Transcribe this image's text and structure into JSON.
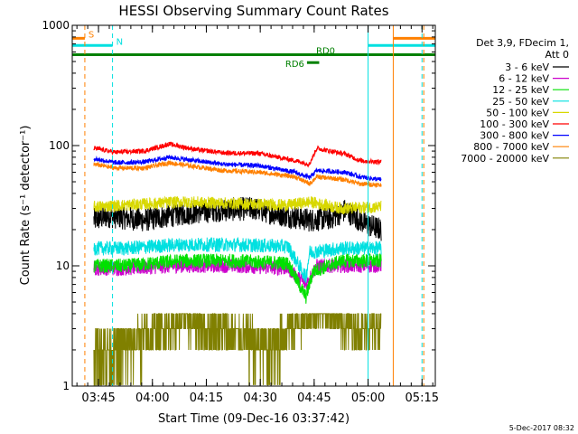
{
  "chart_data": {
    "type": "line",
    "title": "HESSI Observing Summary Count Rates",
    "xlabel": "Start Time (09-Dec-16 03:37:42)",
    "ylabel": "Count Rate (s⁻¹ detector⁻¹)",
    "yscale": "log",
    "ylim": [
      1,
      1000
    ],
    "xlim_minutes": [
      0,
      101
    ],
    "grid": false,
    "legend_position": "right",
    "x_ticks": [
      {
        "minute": 7.3,
        "label": "03:45"
      },
      {
        "minute": 22.3,
        "label": "04:00"
      },
      {
        "minute": 37.3,
        "label": "04:15"
      },
      {
        "minute": 52.3,
        "label": "04:30"
      },
      {
        "minute": 67.3,
        "label": "04:45"
      },
      {
        "minute": 82.3,
        "label": "05:00"
      },
      {
        "minute": 97.3,
        "label": "05:15"
      }
    ],
    "y_ticks": [
      {
        "value": 1,
        "label": "1"
      },
      {
        "value": 10,
        "label": "10"
      },
      {
        "value": 100,
        "label": "100"
      },
      {
        "value": 1000,
        "label": "1000"
      }
    ],
    "legend_header": [
      "Det 3,9, FDecim 1,",
      "Att 0"
    ],
    "series": [
      {
        "name": "3 - 6 keV",
        "color": "#000000",
        "values": [
          [
            6,
            24
          ],
          [
            10,
            26
          ],
          [
            20,
            24
          ],
          [
            30,
            27
          ],
          [
            40,
            29
          ],
          [
            50,
            30
          ],
          [
            60,
            26
          ],
          [
            66,
            24
          ],
          [
            72,
            25
          ],
          [
            76,
            29
          ],
          [
            80,
            24
          ],
          [
            82,
            22
          ],
          [
            86,
            20
          ]
        ]
      },
      {
        "name": "6 - 12 keV",
        "color": "#cc00cc",
        "values": [
          [
            6,
            9.5
          ],
          [
            15,
            9.5
          ],
          [
            30,
            10
          ],
          [
            45,
            10
          ],
          [
            60,
            9.5
          ],
          [
            65,
            7
          ],
          [
            68,
            10
          ],
          [
            75,
            10
          ],
          [
            86,
            10
          ]
        ]
      },
      {
        "name": "12 - 25 keV",
        "color": "#00e000",
        "values": [
          [
            6,
            10
          ],
          [
            15,
            10
          ],
          [
            30,
            11
          ],
          [
            45,
            11
          ],
          [
            60,
            10.5
          ],
          [
            65,
            5.5
          ],
          [
            67,
            9
          ],
          [
            75,
            11
          ],
          [
            86,
            11
          ]
        ]
      },
      {
        "name": "25 - 50 keV",
        "color": "#00e0e0",
        "values": [
          [
            6,
            14
          ],
          [
            15,
            14
          ],
          [
            30,
            15
          ],
          [
            45,
            15
          ],
          [
            60,
            14.5
          ],
          [
            65,
            8
          ],
          [
            66,
            13
          ],
          [
            75,
            14
          ],
          [
            86,
            14
          ]
        ]
      },
      {
        "name": "50 - 100 keV",
        "color": "#d8d800",
        "values": [
          [
            6,
            31
          ],
          [
            15,
            32
          ],
          [
            30,
            34
          ],
          [
            45,
            33
          ],
          [
            60,
            32
          ],
          [
            66,
            34
          ],
          [
            75,
            30
          ],
          [
            86,
            31
          ]
        ]
      },
      {
        "name": "100 - 300 keV",
        "color": "#ff0000",
        "values": [
          [
            6,
            95
          ],
          [
            12,
            88
          ],
          [
            20,
            90
          ],
          [
            27,
            103
          ],
          [
            34,
            93
          ],
          [
            42,
            87
          ],
          [
            52,
            86
          ],
          [
            62,
            75
          ],
          [
            66,
            70
          ],
          [
            68,
            95
          ],
          [
            76,
            85
          ],
          [
            80,
            75
          ],
          [
            86,
            73
          ]
        ]
      },
      {
        "name": "300 - 800 keV",
        "color": "#0000ff",
        "values": [
          [
            6,
            78
          ],
          [
            12,
            72
          ],
          [
            20,
            73
          ],
          [
            27,
            80
          ],
          [
            34,
            75
          ],
          [
            42,
            70
          ],
          [
            52,
            68
          ],
          [
            62,
            60
          ],
          [
            66,
            54
          ],
          [
            68,
            62
          ],
          [
            76,
            60
          ],
          [
            80,
            55
          ],
          [
            86,
            52
          ]
        ]
      },
      {
        "name": "800 - 7000 keV",
        "color": "#ff8000",
        "values": [
          [
            6,
            70
          ],
          [
            12,
            65
          ],
          [
            20,
            65
          ],
          [
            27,
            72
          ],
          [
            34,
            67
          ],
          [
            42,
            62
          ],
          [
            52,
            60
          ],
          [
            62,
            55
          ],
          [
            66,
            48
          ],
          [
            68,
            55
          ],
          [
            76,
            52
          ],
          [
            80,
            48
          ],
          [
            86,
            47
          ]
        ]
      },
      {
        "name": "7000 - 20000 keV",
        "color": "#808000",
        "values": [
          [
            6,
            2
          ],
          [
            15,
            2.2
          ],
          [
            25,
            3
          ],
          [
            30,
            3.6
          ],
          [
            40,
            3
          ],
          [
            50,
            2.5
          ],
          [
            55,
            2
          ],
          [
            60,
            3
          ],
          [
            70,
            4.5
          ],
          [
            75,
            3.2
          ],
          [
            86,
            3
          ]
        ]
      }
    ],
    "markers": [
      {
        "label": "S",
        "color": "#ff8000",
        "minute_start": 0,
        "minute_end": 3.5,
        "level": 780
      },
      {
        "label": "N",
        "color": "#00e0e0",
        "minute_start": 0,
        "minute_end": 11.2,
        "level": 680
      },
      {
        "label": "",
        "color": "#ff8000",
        "minute_start": 89.3,
        "minute_end": 101,
        "level": 780
      },
      {
        "label": "",
        "color": "#00e0e0",
        "minute_start": 82.3,
        "minute_end": 101,
        "level": 680
      },
      {
        "label": "RD0",
        "color": "#008000",
        "minute_start": 0,
        "minute_end": 101,
        "level": 570
      },
      {
        "label": "RD6",
        "color": "#008000",
        "minute_start": 65.3,
        "minute_end": 68.7,
        "level": 490
      }
    ],
    "vertical_lines": [
      {
        "minute": 3.5,
        "color": "#ff8000",
        "style": "dashed"
      },
      {
        "minute": 11.2,
        "color": "#00e0e0",
        "style": "dashed"
      },
      {
        "minute": 82.3,
        "color": "#00e0e0",
        "style": "solid"
      },
      {
        "minute": 89.3,
        "color": "#ff8000",
        "style": "solid"
      },
      {
        "minute": 97.3,
        "color": "#00e0e0",
        "style": "dashed"
      },
      {
        "minute": 97.8,
        "color": "#ff8000",
        "style": "dashed"
      }
    ],
    "footer_date": "5-Dec-2017 08:32"
  }
}
